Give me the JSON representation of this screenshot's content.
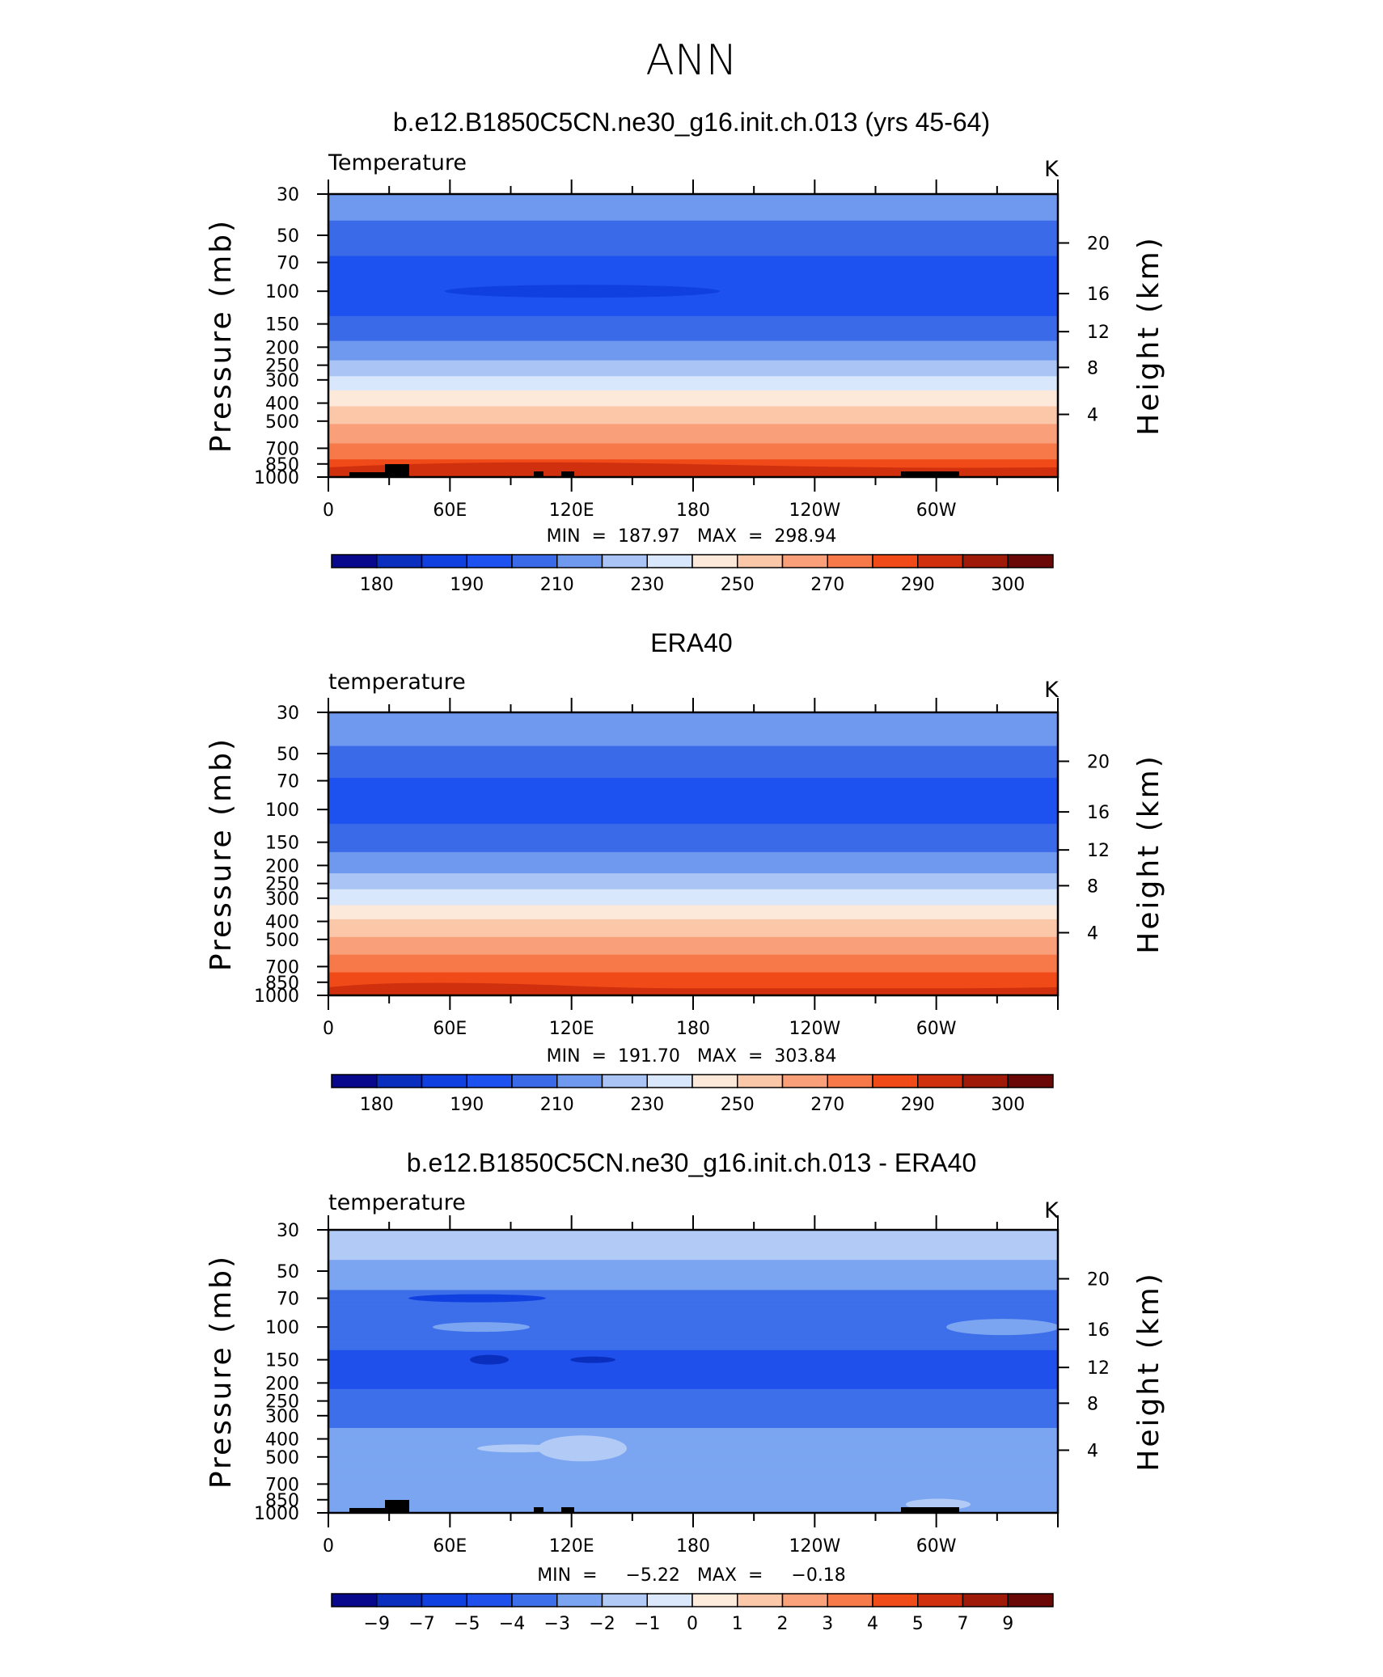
{
  "figure_title": "ANN",
  "colors": {
    "temperature_levels": [
      "#08088c",
      "#0a2fbf",
      "#1040e0",
      "#1e52f0",
      "#3a6ae8",
      "#6f99ef",
      "#a9c4f5",
      "#d8e7fb",
      "#fde9da",
      "#fbc7a9",
      "#f9a07a",
      "#f77848",
      "#f04a18",
      "#d0300e",
      "#a01a0a",
      "#6a0808"
    ],
    "difference_levels": [
      "#08088c",
      "#0a2fbf",
      "#1040e0",
      "#2050ec",
      "#3c6fe9",
      "#7ba5f1",
      "#b1cbf6",
      "#dbe8fb",
      "#fdebdc",
      "#fbc9aa",
      "#f9a27c",
      "#f77a4a",
      "#f04c1a",
      "#d0300e",
      "#a01a0a",
      "#6a0808"
    ],
    "topography": "#000000"
  },
  "panels": [
    {
      "title": "b.e12.B1850C5CN.ne30_g16.init.ch.013 (yrs 45-64)",
      "variable_label": "Temperature",
      "units": "K",
      "min_max": "MIN  =  187.97   MAX  =  298.94",
      "colorbar_labels": [
        "180",
        "190",
        "210",
        "230",
        "250",
        "270",
        "290",
        "300"
      ]
    },
    {
      "title": "ERA40",
      "variable_label": "temperature",
      "units": "K",
      "min_max": "MIN  =  191.70   MAX  =  303.84",
      "colorbar_labels": [
        "180",
        "190",
        "210",
        "230",
        "250",
        "270",
        "290",
        "300"
      ]
    },
    {
      "title": "b.e12.B1850C5CN.ne30_g16.init.ch.013 - ERA40",
      "variable_label": "temperature",
      "units": "K",
      "min_max": "MIN  =     −5.22   MAX  =     −0.18",
      "colorbar_labels": [
        "−9",
        "−7",
        "−5",
        "−4",
        "−3",
        "−2",
        "−1",
        "0",
        "1",
        "2",
        "3",
        "4",
        "5",
        "7",
        "9"
      ]
    }
  ],
  "axes": {
    "y_left_label": "Pressure  (mb)",
    "y_right_label": "Height  (km)",
    "pressure_ticks": [
      "30",
      "50",
      "70",
      "100",
      "150",
      "200",
      "250",
      "300",
      "400",
      "500",
      "700",
      "850",
      "1000"
    ],
    "height_ticks": [
      "20",
      "16",
      "12",
      "8",
      "4"
    ],
    "lon_ticks": [
      "0",
      "60E",
      "120E",
      "180",
      "120W",
      "60W"
    ]
  },
  "chart_data": [
    {
      "type": "heatmap",
      "title": "b.e12.B1850C5CN.ne30_g16.init.ch.013 (yrs 45-64)",
      "subtitle": "Temperature",
      "units": "K",
      "xlabel": "",
      "ylabel": "Pressure  (mb)",
      "y2label": "Height  (km)",
      "x_ticks": [
        "0",
        "60E",
        "120E",
        "180",
        "120W",
        "60W"
      ],
      "y_ticks": [
        30,
        50,
        70,
        100,
        150,
        200,
        250,
        300,
        400,
        500,
        700,
        850,
        1000
      ],
      "y_scale": "log-pressure",
      "contour_levels": [
        180,
        185,
        190,
        200,
        210,
        220,
        230,
        240,
        250,
        260,
        270,
        280,
        290,
        295,
        300
      ],
      "pressure_profile_K": [
        [
          30,
          215
        ],
        [
          50,
          207
        ],
        [
          70,
          198
        ],
        [
          100,
          193
        ],
        [
          150,
          202
        ],
        [
          200,
          213
        ],
        [
          250,
          223
        ],
        [
          300,
          233
        ],
        [
          400,
          248
        ],
        [
          500,
          258
        ],
        [
          700,
          273
        ],
        [
          850,
          283
        ],
        [
          1000,
          292
        ]
      ],
      "min": 187.97,
      "max": 298.94
    },
    {
      "type": "heatmap",
      "title": "ERA40",
      "subtitle": "temperature",
      "units": "K",
      "ylabel": "Pressure  (mb)",
      "y2label": "Height  (km)",
      "x_ticks": [
        "0",
        "60E",
        "120E",
        "180",
        "120W",
        "60W"
      ],
      "y_ticks": [
        30,
        50,
        70,
        100,
        150,
        200,
        250,
        300,
        400,
        500,
        700,
        850,
        1000
      ],
      "y_scale": "log-pressure",
      "contour_levels": [
        180,
        185,
        190,
        200,
        210,
        220,
        230,
        240,
        250,
        260,
        270,
        280,
        290,
        295,
        300
      ],
      "pressure_profile_K": [
        [
          30,
          218
        ],
        [
          50,
          208
        ],
        [
          70,
          199
        ],
        [
          100,
          196
        ],
        [
          150,
          205
        ],
        [
          200,
          216
        ],
        [
          250,
          226
        ],
        [
          300,
          236
        ],
        [
          400,
          251
        ],
        [
          500,
          262
        ],
        [
          700,
          276
        ],
        [
          850,
          286
        ],
        [
          1000,
          296
        ]
      ],
      "min": 191.7,
      "max": 303.84
    },
    {
      "type": "heatmap",
      "title": "b.e12.B1850C5CN.ne30_g16.init.ch.013 - ERA40",
      "subtitle": "temperature",
      "units": "K",
      "ylabel": "Pressure  (mb)",
      "y2label": "Height  (km)",
      "x_ticks": [
        "0",
        "60E",
        "120E",
        "180",
        "120W",
        "60W"
      ],
      "y_ticks": [
        30,
        50,
        70,
        100,
        150,
        200,
        250,
        300,
        400,
        500,
        700,
        850,
        1000
      ],
      "y_scale": "log-pressure",
      "contour_levels": [
        -9,
        -7,
        -5,
        -4,
        -3,
        -2,
        -1,
        0,
        1,
        2,
        3,
        4,
        5,
        7,
        9
      ],
      "pressure_profile_K": [
        [
          30,
          -1.5
        ],
        [
          50,
          -2.2
        ],
        [
          70,
          -3.3
        ],
        [
          100,
          -3.5
        ],
        [
          150,
          -4.2
        ],
        [
          200,
          -4.3
        ],
        [
          250,
          -3.5
        ],
        [
          300,
          -3.2
        ],
        [
          400,
          -2.8
        ],
        [
          500,
          -2.6
        ],
        [
          700,
          -2.5
        ],
        [
          850,
          -2.5
        ],
        [
          1000,
          -2.5
        ]
      ],
      "min": -5.22,
      "max": -0.18
    }
  ]
}
